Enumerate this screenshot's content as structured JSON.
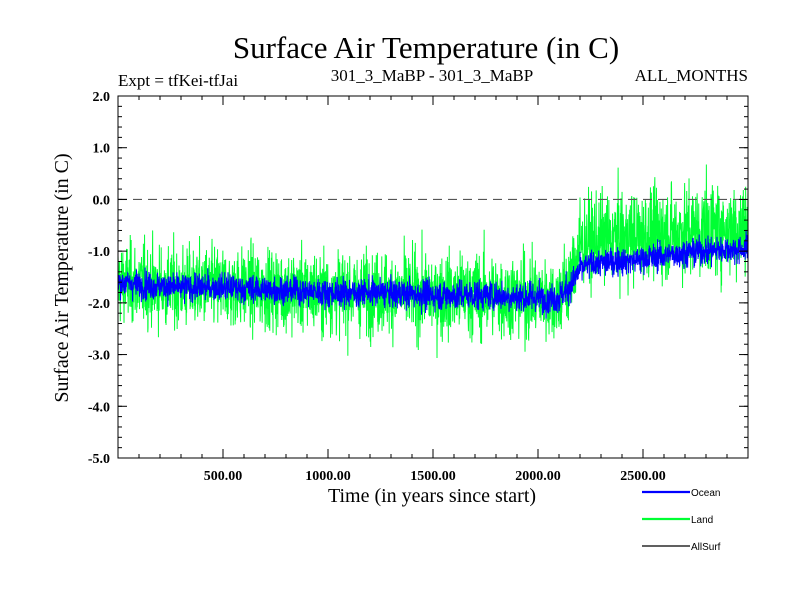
{
  "chart_data": {
    "type": "line",
    "title": "Surface Air Temperature (in C)",
    "subtitle_left": "Expt = tfKei-tfJai",
    "subtitle_center": "301_3_MaBP - 301_3_MaBP",
    "subtitle_right": "ALL_MONTHS",
    "xlabel": "Time (in years since start)",
    "ylabel": "Surface Air Temperature (in C)",
    "xlim": [
      0,
      3000
    ],
    "ylim": [
      -5.0,
      2.0
    ],
    "xticks": [
      500,
      1000,
      1500,
      2000,
      2500
    ],
    "xtick_labels": [
      "500.00",
      "1000.00",
      "1500.00",
      "2000.00",
      "2500.00"
    ],
    "yticks": [
      2.0,
      1.0,
      0.0,
      -1.0,
      -2.0,
      -3.0,
      -4.0,
      -5.0
    ],
    "ytick_labels": [
      "2.0",
      "1.0",
      "0.0",
      "-1.0",
      "-2.0",
      "-3.0",
      "-4.0",
      "-5.0"
    ],
    "reference_line": {
      "y": 0.0,
      "style": "dashed"
    },
    "grid": false,
    "legend_placement": "bottom-right",
    "series": [
      {
        "name": "Ocean",
        "color": "#0000ff",
        "x": [
          0,
          250,
          500,
          750,
          1000,
          1250,
          1500,
          1750,
          2000,
          2100,
          2150,
          2200,
          2250,
          2500,
          2750,
          3000
        ],
        "y": [
          -1.6,
          -1.7,
          -1.7,
          -1.75,
          -1.8,
          -1.8,
          -1.85,
          -1.85,
          -1.9,
          -1.9,
          -1.7,
          -1.35,
          -1.25,
          -1.15,
          -1.0,
          -0.95
        ],
        "band": [
          0.45,
          0.45,
          0.45,
          0.45,
          0.45,
          0.45,
          0.5,
          0.5,
          0.5,
          0.5,
          0.5,
          0.45,
          0.45,
          0.45,
          0.45,
          0.45
        ]
      },
      {
        "name": "Land",
        "color": "#00ff33",
        "x": [
          0,
          250,
          500,
          750,
          1000,
          1250,
          1500,
          1750,
          2000,
          2100,
          2150,
          2200,
          2250,
          2500,
          2750,
          3000
        ],
        "y": [
          -1.6,
          -1.7,
          -1.7,
          -1.75,
          -1.8,
          -1.8,
          -1.85,
          -1.85,
          -1.9,
          -1.9,
          -1.6,
          -0.9,
          -0.8,
          -0.7,
          -0.6,
          -0.55
        ],
        "band": [
          1.3,
          1.3,
          1.3,
          1.3,
          1.3,
          1.3,
          1.35,
          1.4,
          1.35,
          1.35,
          1.4,
          1.4,
          1.4,
          1.45,
          1.5,
          1.5
        ]
      },
      {
        "name": "AllSurf",
        "color": "#000000",
        "x": [],
        "y": []
      }
    ]
  }
}
